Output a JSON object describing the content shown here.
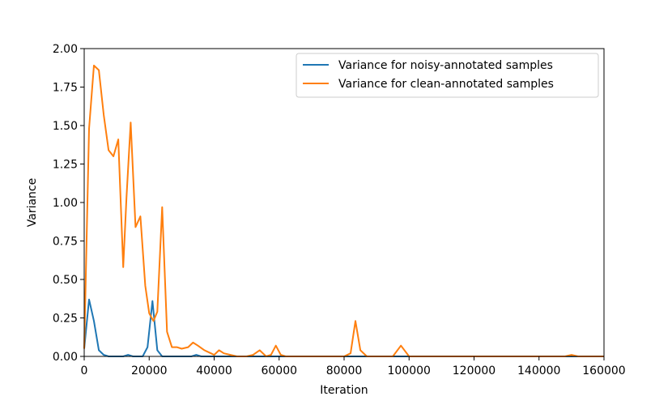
{
  "chart_data": {
    "type": "line",
    "title": "",
    "xlabel": "Iteration",
    "ylabel": "Variance",
    "xlim": [
      0,
      160000
    ],
    "ylim": [
      0,
      2.0
    ],
    "grid": false,
    "legend_position": "upper right",
    "xticks": [
      0,
      20000,
      40000,
      60000,
      80000,
      100000,
      120000,
      140000,
      160000
    ],
    "xtick_labels": [
      "0",
      "20000",
      "40000",
      "60000",
      "80000",
      "100000",
      "120000",
      "140000",
      "160000"
    ],
    "yticks": [
      0,
      0.25,
      0.5,
      0.75,
      1.0,
      1.25,
      1.5,
      1.75,
      2.0
    ],
    "ytick_labels": [
      "0.00",
      "0.25",
      "0.50",
      "0.75",
      "1.00",
      "1.25",
      "1.50",
      "1.75",
      "2.00"
    ],
    "series": [
      {
        "name": "Variance for noisy-annotated samples",
        "color": "#1f77b4",
        "x": [
          0,
          1500,
          3000,
          4500,
          6000,
          7500,
          9000,
          10500,
          12000,
          13500,
          15000,
          16500,
          18000,
          19500,
          21000,
          22500,
          24000,
          25500,
          27000,
          30000,
          33000,
          34500,
          36000,
          40000,
          45000,
          50000,
          55000,
          60000,
          70000,
          80000,
          90000,
          100000,
          110000,
          120000,
          130000,
          140000,
          150000,
          160000
        ],
        "y": [
          0.05,
          0.37,
          0.23,
          0.04,
          0.01,
          0.0,
          0.0,
          0.0,
          0.0,
          0.01,
          0.0,
          0.0,
          0.0,
          0.06,
          0.36,
          0.04,
          0.0,
          0.0,
          0.0,
          0.0,
          0.0,
          0.01,
          0.0,
          0.0,
          0.0,
          0.0,
          0.0,
          0.0,
          0.0,
          0.0,
          0.0,
          0.0,
          0.0,
          0.0,
          0.0,
          0.0,
          0.0,
          0.0
        ]
      },
      {
        "name": "Variance for clean-annotated samples",
        "color": "#ff7f0e",
        "x": [
          0,
          1500,
          3000,
          4500,
          6000,
          7500,
          9000,
          10500,
          12000,
          13000,
          14300,
          15800,
          17300,
          18800,
          20000,
          21300,
          22500,
          24000,
          25500,
          27000,
          28500,
          30000,
          32000,
          33500,
          35000,
          37000,
          39000,
          40000,
          41500,
          43000,
          45000,
          47000,
          50000,
          52000,
          54000,
          56000,
          57500,
          59000,
          60500,
          62000,
          64000,
          70000,
          78000,
          80000,
          82000,
          83500,
          85000,
          87000,
          90000,
          95000,
          97500,
          100000,
          105000,
          120000,
          140000,
          148000,
          150000,
          152000,
          160000
        ],
        "y": [
          0.05,
          1.48,
          1.89,
          1.86,
          1.57,
          1.34,
          1.3,
          1.41,
          0.58,
          1.03,
          1.52,
          0.84,
          0.91,
          0.46,
          0.28,
          0.23,
          0.29,
          0.97,
          0.16,
          0.06,
          0.06,
          0.05,
          0.06,
          0.09,
          0.07,
          0.04,
          0.02,
          0.01,
          0.04,
          0.02,
          0.01,
          0.0,
          0.0,
          0.01,
          0.04,
          0.0,
          0.01,
          0.07,
          0.01,
          0.0,
          0.0,
          0.0,
          0.0,
          0.0,
          0.02,
          0.23,
          0.04,
          0.0,
          0.0,
          0.0,
          0.07,
          0.0,
          0.0,
          0.0,
          0.0,
          0.0,
          0.01,
          0.0,
          0.0
        ]
      }
    ]
  }
}
